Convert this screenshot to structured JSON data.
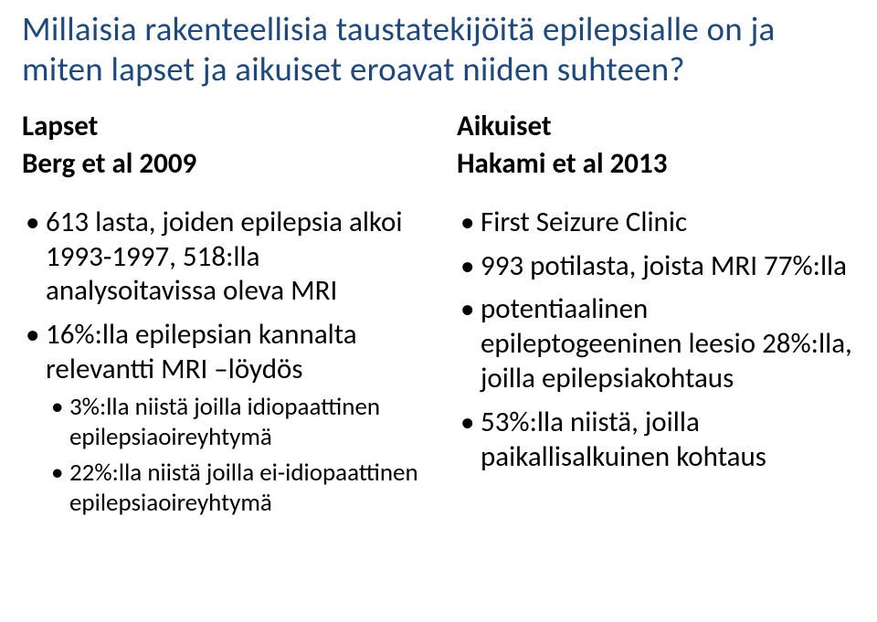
{
  "title": "Millaisia rakenteellisia taustatekijöitä epilepsialle on ja miten lapset ja aikuiset eroavat niiden suhteen?",
  "left": {
    "heading": "Lapset",
    "subheading": "Berg et al 2009",
    "bullets": [
      "613 lasta, joiden epilepsia alkoi 1993-1997, 518:lla analysoitavissa oleva MRI",
      "16%:lla epilepsian kannalta relevantti MRI –löydös"
    ],
    "subbullets": [
      "3%:lla niistä joilla idiopaattinen epilepsiaoireyhtymä",
      "22%:lla niistä joilla ei-idiopaattinen epilepsiaoireyhtymä"
    ]
  },
  "right": {
    "heading": "Aikuiset",
    "subheading": "Hakami et al 2013",
    "bullets": [
      "First Seizure Clinic",
      "993 potilasta, joista MRI 77%:lla",
      "potentiaalinen epileptogeeninen leesio 28%:lla, joilla epilepsiakohtaus",
      "53%:lla niistä, joilla paikallisalkuinen kohtaus"
    ]
  }
}
